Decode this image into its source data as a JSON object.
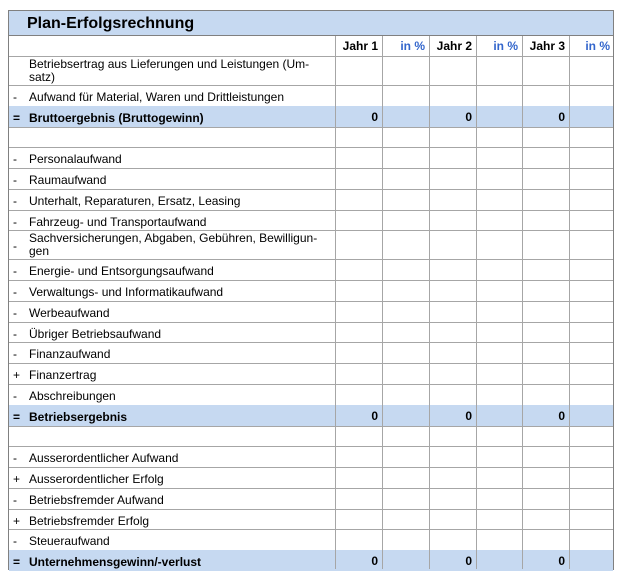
{
  "title": "Plan-Erfolgsrechnung",
  "columns": [
    "Jahr 1",
    "in %",
    "Jahr 2",
    "in %",
    "Jahr 3",
    "in %"
  ],
  "rows": [
    {
      "sign": null,
      "label": "Betriebsertrag aus Lieferungen und Leistungen (Um-\nsatz)"
    },
    {
      "sign": "-",
      "label": "Aufwand für Material, Waren und Drittleistungen"
    },
    {
      "sign": "=",
      "label": "Bruttoergebnis (Bruttogewinn)",
      "values": [
        0,
        0,
        0
      ]
    },
    {
      "sign": null,
      "label": null
    },
    {
      "sign": "-",
      "label": "Personalaufwand"
    },
    {
      "sign": "-",
      "label": "Raumaufwand"
    },
    {
      "sign": "-",
      "label": "Unterhalt, Reparaturen, Ersatz, Leasing"
    },
    {
      "sign": "-",
      "label": "Fahrzeug- und Transportaufwand"
    },
    {
      "sign": "-",
      "label": "Sachversicherungen, Abgaben, Gebühren, Bewilligun-\ngen"
    },
    {
      "sign": "-",
      "label": "Energie- und Entsorgungsaufwand"
    },
    {
      "sign": "-",
      "label": "Verwaltungs- und Informatikaufwand"
    },
    {
      "sign": "-",
      "label": "Werbeaufwand"
    },
    {
      "sign": "-",
      "label": "Übriger Betriebsaufwand"
    },
    {
      "sign": "-",
      "label": "Finanzaufwand"
    },
    {
      "sign": "+",
      "label": "Finanzertrag"
    },
    {
      "sign": "-",
      "label": "Abschreibungen"
    },
    {
      "sign": "=",
      "label": "Betriebsergebnis",
      "values": [
        0,
        0,
        0
      ]
    },
    {
      "sign": null,
      "label": null
    },
    {
      "sign": "-",
      "label": "Ausserordentlicher Aufwand"
    },
    {
      "sign": "+",
      "label": "Ausserordentlicher Erfolg"
    },
    {
      "sign": "-",
      "label": "Betriebsfremder Aufwand"
    },
    {
      "sign": "+",
      "label": "Betriebsfremder Erfolg"
    },
    {
      "sign": "-",
      "label": "Steueraufwand"
    },
    {
      "sign": "=",
      "label": "Unternehmensgewinn/-verlust",
      "values": [
        0,
        0,
        0
      ]
    }
  ]
}
